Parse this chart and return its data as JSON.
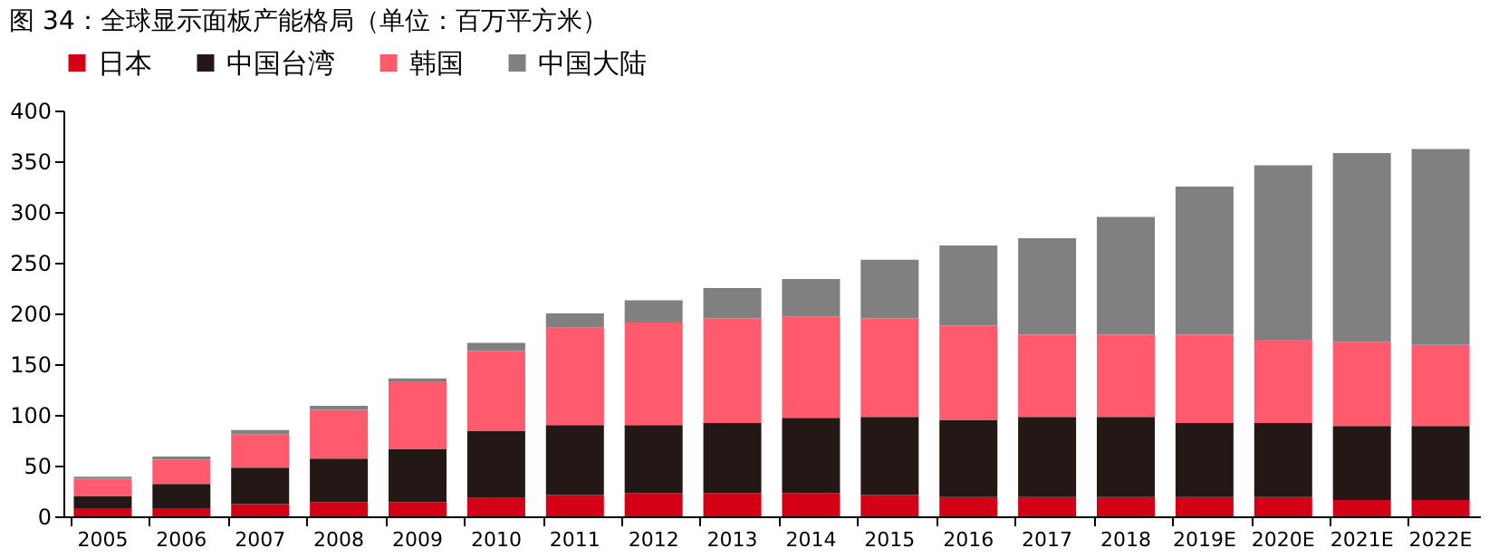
{
  "chart_data": {
    "type": "bar",
    "title": "图 34：全球显示面板产能格局（单位：百万平方米）",
    "stacked": true,
    "categories": [
      "2005",
      "2006",
      "2007",
      "2008",
      "2009",
      "2010",
      "2011",
      "2012",
      "2013",
      "2014",
      "2015",
      "2016",
      "2017",
      "2018",
      "2019E",
      "2020E",
      "2021E",
      "2022E"
    ],
    "series": [
      {
        "name": "日本",
        "color": "#d40015",
        "values": [
          8,
          8,
          12,
          14,
          14,
          18,
          21,
          23,
          23,
          23,
          21,
          19,
          19,
          19,
          19,
          19,
          16,
          16
        ]
      },
      {
        "name": "中国台湾",
        "color": "#231815",
        "values": [
          12,
          24,
          36,
          43,
          52,
          66,
          69,
          67,
          69,
          74,
          77,
          76,
          79,
          79,
          73,
          73,
          73,
          73
        ]
      },
      {
        "name": "韩国",
        "color": "#ff5a6e",
        "values": [
          17,
          24,
          33,
          48,
          67,
          79,
          96,
          101,
          103,
          100,
          97,
          93,
          81,
          81,
          87,
          82,
          83,
          80
        ]
      },
      {
        "name": "中国大陆",
        "color": "#808080",
        "values": [
          2,
          3,
          4,
          4,
          3,
          8,
          14,
          22,
          30,
          37,
          58,
          79,
          95,
          116,
          146,
          172,
          186,
          193
        ]
      }
    ],
    "ylim": [
      0,
      400
    ],
    "yticks": [
      0,
      50,
      100,
      150,
      200,
      250,
      300,
      350,
      400
    ],
    "grid": false,
    "legend": "top"
  }
}
